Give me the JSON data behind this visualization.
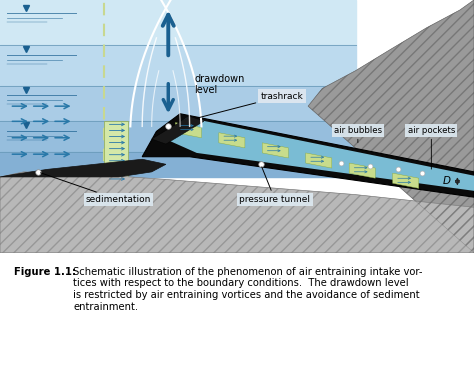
{
  "figure_width": 4.74,
  "figure_height": 3.69,
  "dpi": 100,
  "bg_color": "#ffffff",
  "caption_label": "Figure 1.1:",
  "caption_text": "Schematic illustration of the phenomenon of air entraining intake vor-\ntices with respect to the boundary conditions.  The drawdown level\nis restricted by air entraining vortices and the avoidance of sediment\nentrainment.",
  "caption_fontsize": 7.2,
  "water_light": "#c8e4f0",
  "water_mid1": "#b0d4e8",
  "water_mid2": "#9ec8e0",
  "water_mid3": "#8ab8d4",
  "water_dark": "#78aac8",
  "dam_color": "#9a9a9a",
  "dam_edge": "#777777",
  "floor_color": "#b8b8b8",
  "floor_edge": "#888888",
  "black": "#111111",
  "tunnel_fill": "#7abcd4",
  "green_fill": "#c8dc8c",
  "green_edge": "#8aaa40",
  "dashed_line_color": "#c8d890",
  "arrow_blue": "#1a6090",
  "horiz_arrow_blue": "#2878a8",
  "white": "#ffffff",
  "label_bg": "#e0e8f0",
  "label_bg2": "#dce8f0",
  "sedimentation": "sedimentation",
  "pressure_tunnel": "pressure tunnel",
  "trashrack": "trashrack",
  "air_bubbles": "air bubbles",
  "air_pockets": "air pockets",
  "drawdown_level": "drawdown\nlevel",
  "D_label": "D"
}
